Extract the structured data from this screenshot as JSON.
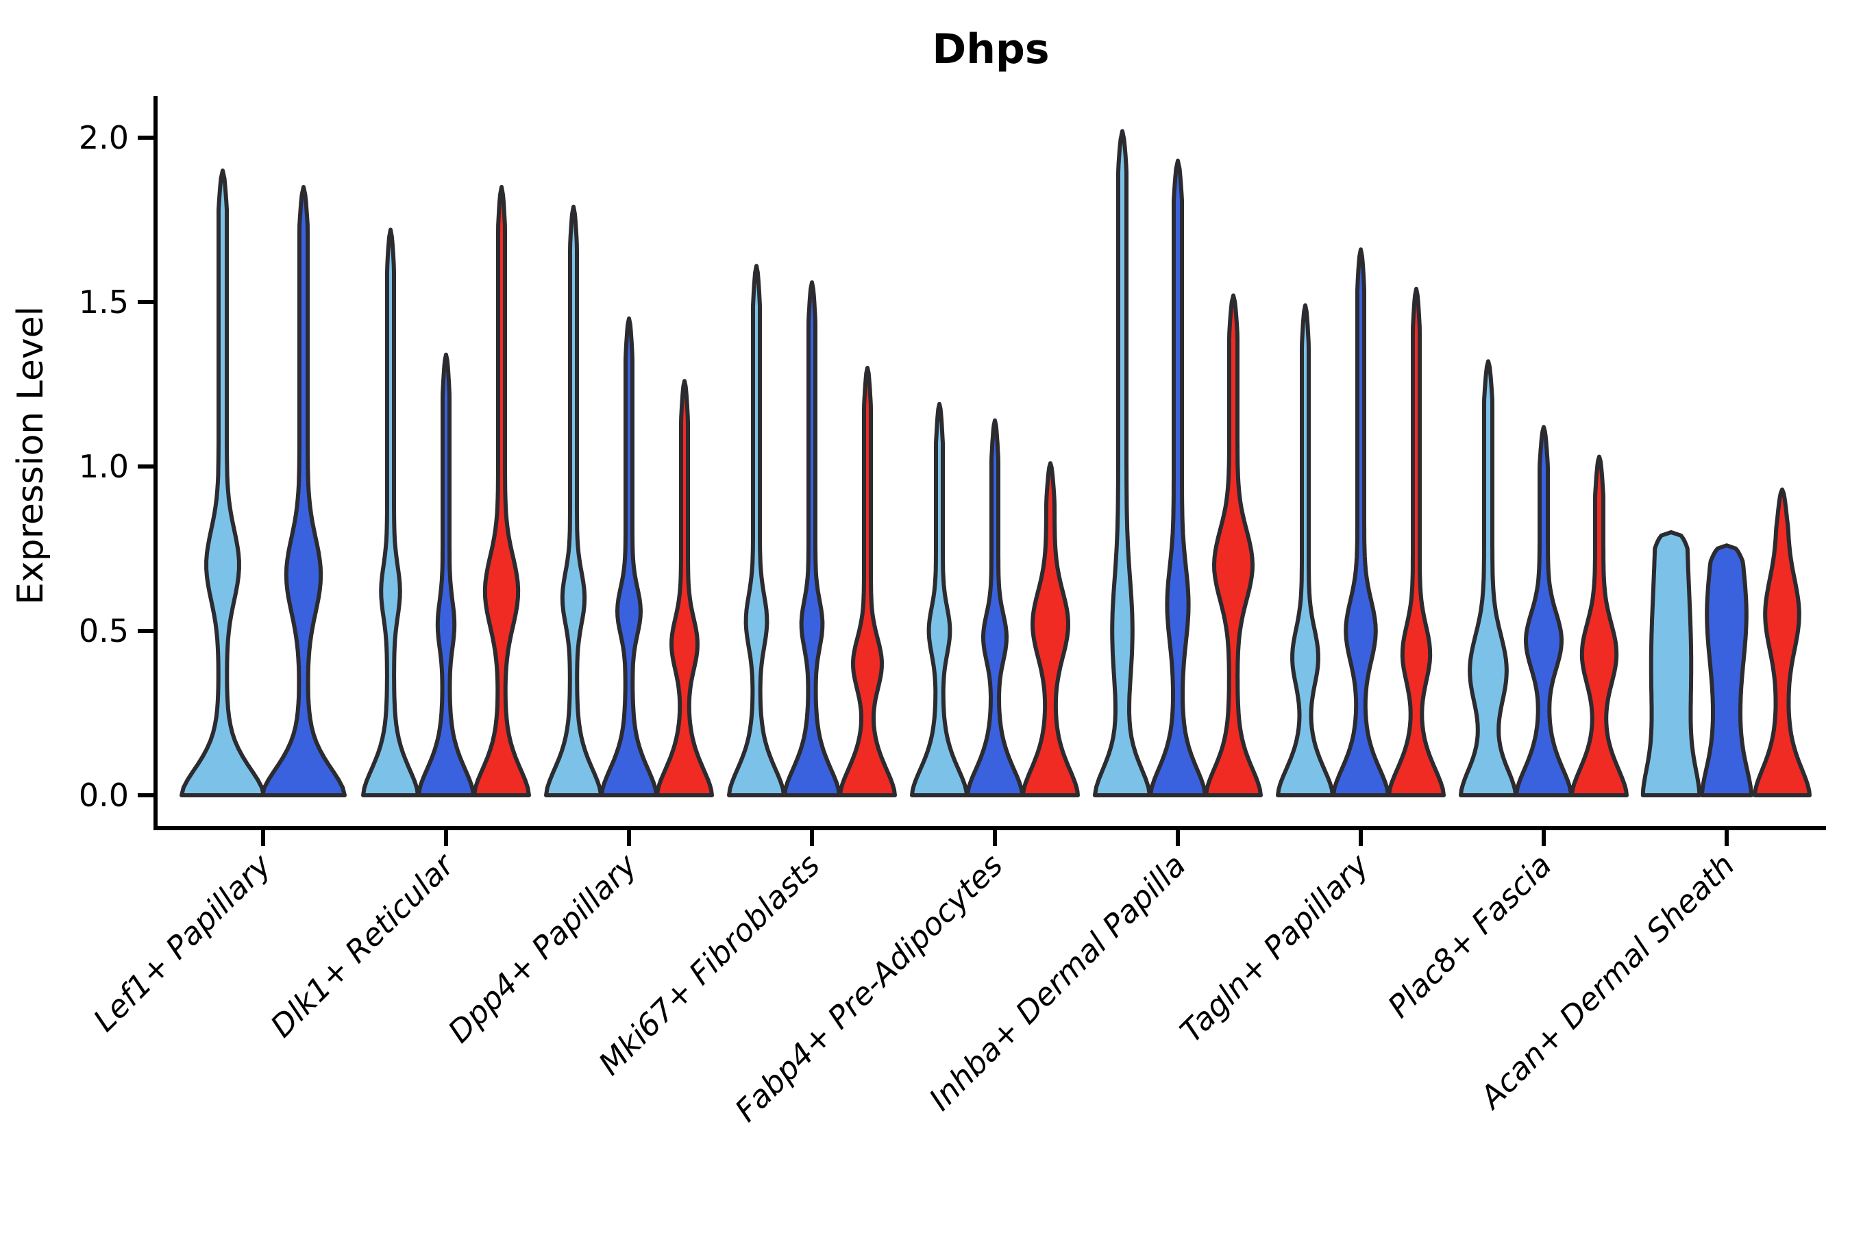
{
  "chart": {
    "title": "Dhps",
    "y_axis_label": "Expression Level",
    "background_color": "#ffffff",
    "outline_color": "#2b2b30",
    "axis_color": "#000000",
    "series_colors": {
      "light_blue": "#7cc2e8",
      "dark_blue": "#3a62de",
      "red": "#ef2b24"
    }
  },
  "chart_data": {
    "type": "violin",
    "title": "Dhps",
    "xlabel": "",
    "ylabel": "Expression Level",
    "ylim": [
      0,
      2.13
    ],
    "yticks": [
      0.0,
      0.5,
      1.0,
      1.5,
      2.0
    ],
    "ytick_labels": [
      "0.0",
      "0.5",
      "1.0",
      "1.5",
      "2.0"
    ],
    "grid": false,
    "legend": false,
    "categories": [
      "Lef1+ Papillary",
      "Dlk1+ Reticular",
      "Dpp4+ Papillary",
      "Mki67+ Fibroblasts",
      "Fabp4+ Pre-Adipocytes",
      "Inhba+ Dermal Papilla",
      "Tagln+ Papillary",
      "Plac8+ Fascia",
      "Acan+ Dermal Sheath"
    ],
    "groups": [
      {
        "label": "Lef1+ Papillary",
        "violins": [
          {
            "series": "light_blue",
            "max": 1.9,
            "width": 60,
            "stem": 6,
            "bulge_center": 0.7,
            "bulge_sigma": 0.15,
            "bulge_amp": 0.3,
            "flat_top": false
          },
          {
            "series": "dark_blue",
            "max": 1.85,
            "width": 60,
            "stem": 6,
            "bulge_center": 0.67,
            "bulge_sigma": 0.16,
            "bulge_amp": 0.32,
            "flat_top": false
          }
        ]
      },
      {
        "label": "Dlk1+ Reticular",
        "violins": [
          {
            "series": "light_blue",
            "max": 1.72,
            "width": 40,
            "stem": 5,
            "bulge_center": 0.62,
            "bulge_sigma": 0.11,
            "bulge_amp": 0.22,
            "flat_top": false
          },
          {
            "series": "dark_blue",
            "max": 1.34,
            "width": 40,
            "stem": 5,
            "bulge_center": 0.52,
            "bulge_sigma": 0.1,
            "bulge_amp": 0.18,
            "flat_top": false
          },
          {
            "series": "red",
            "max": 1.85,
            "width": 40,
            "stem": 5,
            "bulge_center": 0.62,
            "bulge_sigma": 0.15,
            "bulge_amp": 0.48,
            "flat_top": false
          }
        ]
      },
      {
        "label": "Dpp4+ Papillary",
        "violins": [
          {
            "series": "light_blue",
            "max": 1.79,
            "width": 40,
            "stem": 5,
            "bulge_center": 0.6,
            "bulge_sigma": 0.11,
            "bulge_amp": 0.28,
            "flat_top": false
          },
          {
            "series": "dark_blue",
            "max": 1.45,
            "width": 40,
            "stem": 5,
            "bulge_center": 0.56,
            "bulge_sigma": 0.1,
            "bulge_amp": 0.3,
            "flat_top": false
          },
          {
            "series": "red",
            "max": 1.26,
            "width": 40,
            "stem": 5,
            "bulge_center": 0.46,
            "bulge_sigma": 0.11,
            "bulge_amp": 0.35,
            "flat_top": false
          }
        ]
      },
      {
        "label": "Mki67+ Fibroblasts",
        "violins": [
          {
            "series": "light_blue",
            "max": 1.61,
            "width": 40,
            "stem": 5,
            "bulge_center": 0.53,
            "bulge_sigma": 0.11,
            "bulge_amp": 0.26,
            "flat_top": false
          },
          {
            "series": "dark_blue",
            "max": 1.56,
            "width": 40,
            "stem": 5,
            "bulge_center": 0.52,
            "bulge_sigma": 0.1,
            "bulge_amp": 0.26,
            "flat_top": false
          },
          {
            "series": "red",
            "max": 1.3,
            "width": 40,
            "stem": 5,
            "bulge_center": 0.4,
            "bulge_sigma": 0.11,
            "bulge_amp": 0.4,
            "flat_top": false
          }
        ]
      },
      {
        "label": "Fabp4+ Pre-Adipocytes",
        "violins": [
          {
            "series": "light_blue",
            "max": 1.19,
            "width": 40,
            "stem": 5,
            "bulge_center": 0.5,
            "bulge_sigma": 0.1,
            "bulge_amp": 0.26,
            "flat_top": false
          },
          {
            "series": "dark_blue",
            "max": 1.14,
            "width": 40,
            "stem": 5,
            "bulge_center": 0.48,
            "bulge_sigma": 0.1,
            "bulge_amp": 0.3,
            "flat_top": false
          },
          {
            "series": "red",
            "max": 1.01,
            "width": 40,
            "stem": 6,
            "bulge_center": 0.52,
            "bulge_sigma": 0.14,
            "bulge_amp": 0.5,
            "flat_top": false
          }
        ]
      },
      {
        "label": "Inhba+ Dermal Papilla",
        "violins": [
          {
            "series": "light_blue",
            "max": 2.02,
            "width": 40,
            "stem": 6,
            "bulge_center": 0.5,
            "bulge_sigma": 0.22,
            "bulge_amp": 0.22,
            "flat_top": false
          },
          {
            "series": "dark_blue",
            "max": 1.93,
            "width": 40,
            "stem": 6,
            "bulge_center": 0.58,
            "bulge_sigma": 0.16,
            "bulge_amp": 0.24,
            "flat_top": false
          },
          {
            "series": "red",
            "max": 1.52,
            "width": 40,
            "stem": 6,
            "bulge_center": 0.7,
            "bulge_sigma": 0.15,
            "bulge_amp": 0.55,
            "flat_top": false
          }
        ]
      },
      {
        "label": "Tagln+ Papillary",
        "violins": [
          {
            "series": "light_blue",
            "max": 1.49,
            "width": 40,
            "stem": 5,
            "bulge_center": 0.42,
            "bulge_sigma": 0.12,
            "bulge_amp": 0.35,
            "flat_top": false
          },
          {
            "series": "dark_blue",
            "max": 1.66,
            "width": 40,
            "stem": 5,
            "bulge_center": 0.5,
            "bulge_sigma": 0.13,
            "bulge_amp": 0.42,
            "flat_top": false
          },
          {
            "series": "red",
            "max": 1.54,
            "width": 40,
            "stem": 5,
            "bulge_center": 0.43,
            "bulge_sigma": 0.12,
            "bulge_amp": 0.38,
            "flat_top": false
          }
        ]
      },
      {
        "label": "Plac8+ Fascia",
        "violins": [
          {
            "series": "light_blue",
            "max": 1.32,
            "width": 40,
            "stem": 6,
            "bulge_center": 0.38,
            "bulge_sigma": 0.15,
            "bulge_amp": 0.52,
            "flat_top": false
          },
          {
            "series": "dark_blue",
            "max": 1.12,
            "width": 40,
            "stem": 6,
            "bulge_center": 0.47,
            "bulge_sigma": 0.12,
            "bulge_amp": 0.5,
            "flat_top": false
          },
          {
            "series": "red",
            "max": 1.03,
            "width": 40,
            "stem": 6,
            "bulge_center": 0.43,
            "bulge_sigma": 0.13,
            "bulge_amp": 0.48,
            "flat_top": false
          }
        ]
      },
      {
        "label": "Acan+ Dermal Sheath",
        "violins": [
          {
            "series": "light_blue",
            "max": 0.8,
            "width": 40,
            "stem": 22,
            "bulge_center": 0.4,
            "bulge_sigma": 0.3,
            "bulge_amp": 0.18,
            "flat_top": true
          },
          {
            "series": "dark_blue",
            "max": 0.76,
            "width": 36,
            "stem": 18,
            "bulge_center": 0.55,
            "bulge_sigma": 0.2,
            "bulge_amp": 0.3,
            "flat_top": true
          },
          {
            "series": "red",
            "max": 0.93,
            "width": 40,
            "stem": 8,
            "bulge_center": 0.55,
            "bulge_sigma": 0.15,
            "bulge_amp": 0.42,
            "flat_top": false
          }
        ]
      }
    ]
  }
}
